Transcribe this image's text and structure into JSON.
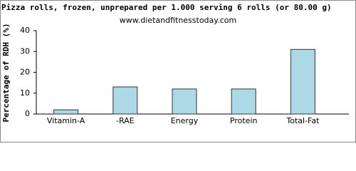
{
  "chart_data": {
    "type": "bar",
    "title": "Pizza rolls, frozen, unprepared per 1.000 serving 6 rolls (or 80.00 g)",
    "subtitle": "www.dietandfitnesstoday.com",
    "y_label": "Percentage of RDH (%)",
    "categories": [
      "Vitamin-A",
      "-RAE",
      "Energy",
      "Protein",
      "Total-Fat"
    ],
    "values": [
      2,
      13,
      12,
      12,
      31
    ],
    "color": "#add8e6",
    "ylim": [
      0,
      40
    ],
    "yticks": [
      0,
      10,
      20,
      30,
      40
    ]
  }
}
